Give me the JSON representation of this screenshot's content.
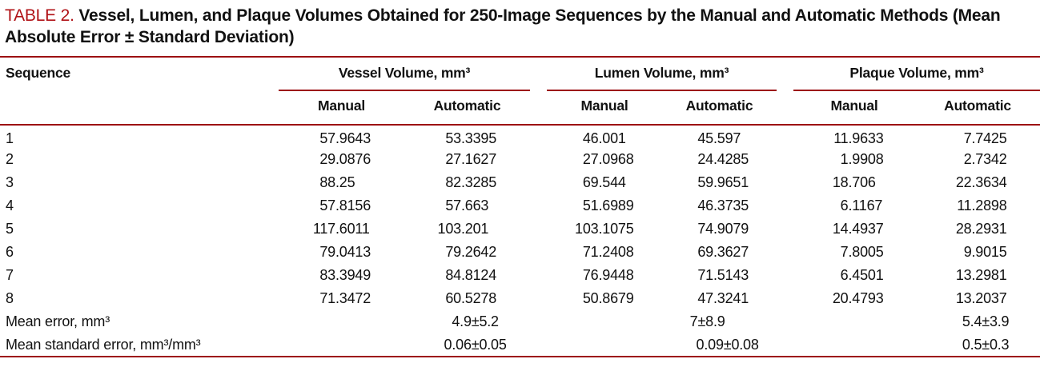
{
  "title": {
    "label": "TABLE 2.",
    "text": "Vessel, Lumen, and Plaque Volumes Obtained for 250-Image Sequences by the Manual and Automatic Methods (Mean Absolute Error ± Standard Deviation)"
  },
  "colors": {
    "rule": "#9d0d12",
    "table_label": "#b01116",
    "text": "#111111",
    "background": "#ffffff"
  },
  "header": {
    "sequence": "Sequence",
    "groups": [
      {
        "label": "Vessel Volume, mm³",
        "sub": [
          "Manual",
          "Automatic"
        ]
      },
      {
        "label": "Lumen Volume, mm³",
        "sub": [
          "Manual",
          "Automatic"
        ]
      },
      {
        "label": "Plaque Volume, mm³",
        "sub": [
          "Manual",
          "Automatic"
        ]
      }
    ]
  },
  "rows": [
    {
      "label": "1",
      "cells": [
        "57.9643",
        "53.3395",
        "46.001",
        "45.597",
        "11.9633",
        "7.7425"
      ]
    },
    {
      "label": "2",
      "cells": [
        "29.0876",
        "27.1627",
        "27.0968",
        "24.4285",
        "1.9908",
        "2.7342"
      ]
    },
    {
      "label": "3",
      "cells": [
        "88.25",
        "82.3285",
        "69.544",
        "59.9651",
        "18.706",
        "22.3634"
      ]
    },
    {
      "label": "4",
      "cells": [
        "57.8156",
        "57.663",
        "51.6989",
        "46.3735",
        "6.1167",
        "11.2898"
      ]
    },
    {
      "label": "5",
      "cells": [
        "117.6011",
        "103.201",
        "103.1075",
        "74.9079",
        "14.4937",
        "28.2931"
      ]
    },
    {
      "label": "6",
      "cells": [
        "79.0413",
        "79.2642",
        "71.2408",
        "69.3627",
        "7.8005",
        "9.9015"
      ]
    },
    {
      "label": "7",
      "cells": [
        "83.3949",
        "84.8124",
        "76.9448",
        "71.5143",
        "6.4501",
        "13.2981"
      ]
    },
    {
      "label": "8",
      "cells": [
        "71.3472",
        "60.5278",
        "50.8679",
        "47.3241",
        "20.4793",
        "13.2037"
      ]
    },
    {
      "label": "Mean error, mm³",
      "cells": [
        "",
        "4.9±5.2",
        "",
        "7±8.9",
        "",
        "5.4±3.9"
      ]
    },
    {
      "label": "Mean standard error, mm³/mm³",
      "cells": [
        "",
        "0.06±0.05",
        "",
        "0.09±0.08",
        "",
        "0.5±0.3"
      ]
    }
  ]
}
